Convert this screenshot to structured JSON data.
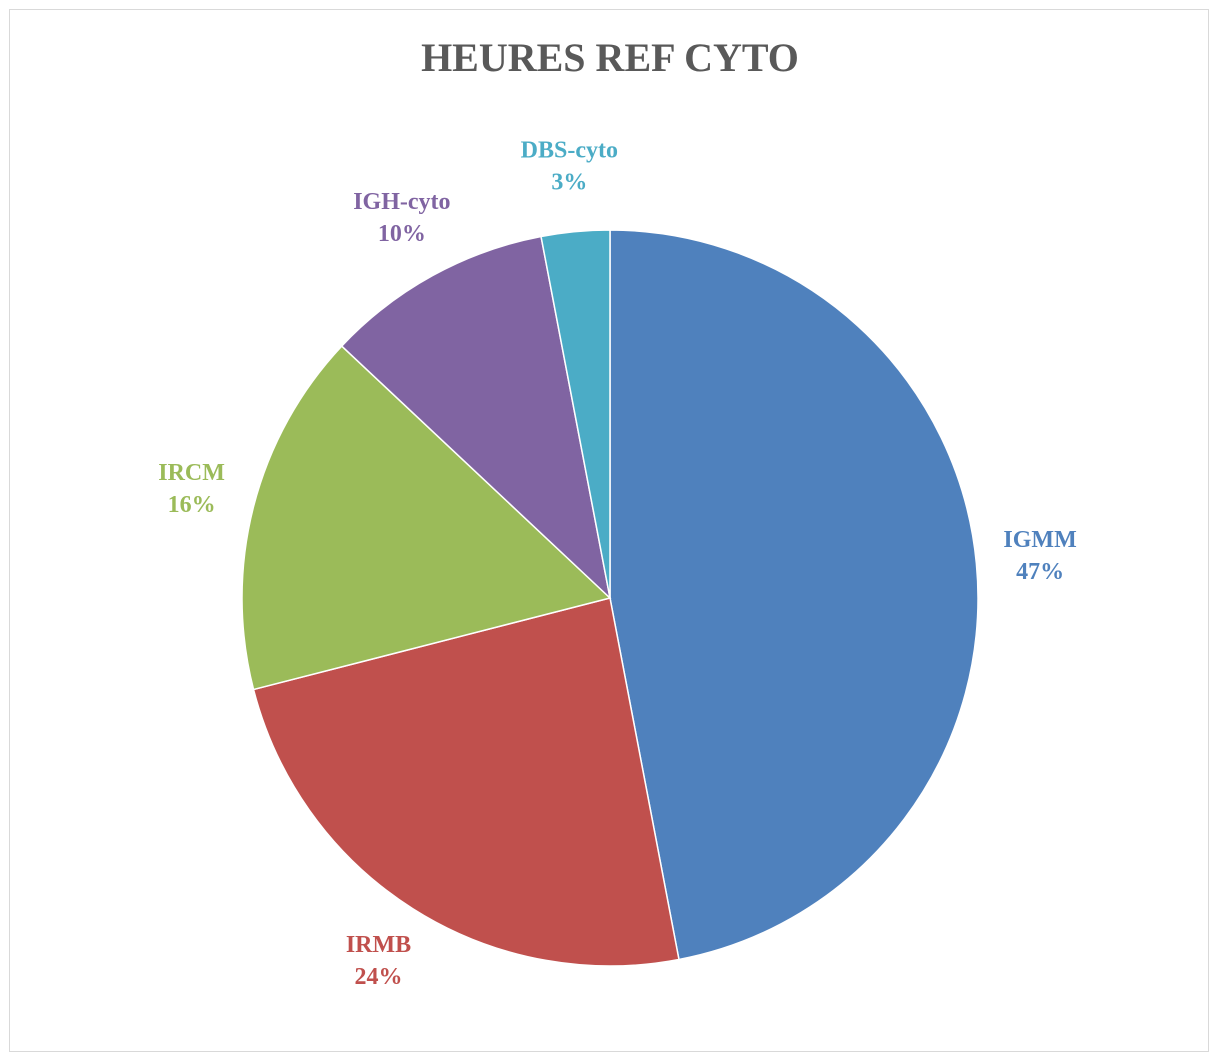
{
  "chart_data": {
    "type": "pie",
    "title": "HEURES REF CYTO",
    "categories": [
      "IGMM",
      "IRMB",
      "IRCM",
      "IGH-cyto",
      "DBS-cyto"
    ],
    "values": [
      47,
      24,
      16,
      10,
      3
    ],
    "value_labels": [
      "47%",
      "24%",
      "16%",
      "10%",
      "3%"
    ],
    "colors": [
      "#4f81bd",
      "#c0504d",
      "#9bbb59",
      "#8064a2",
      "#4bacc6"
    ]
  }
}
